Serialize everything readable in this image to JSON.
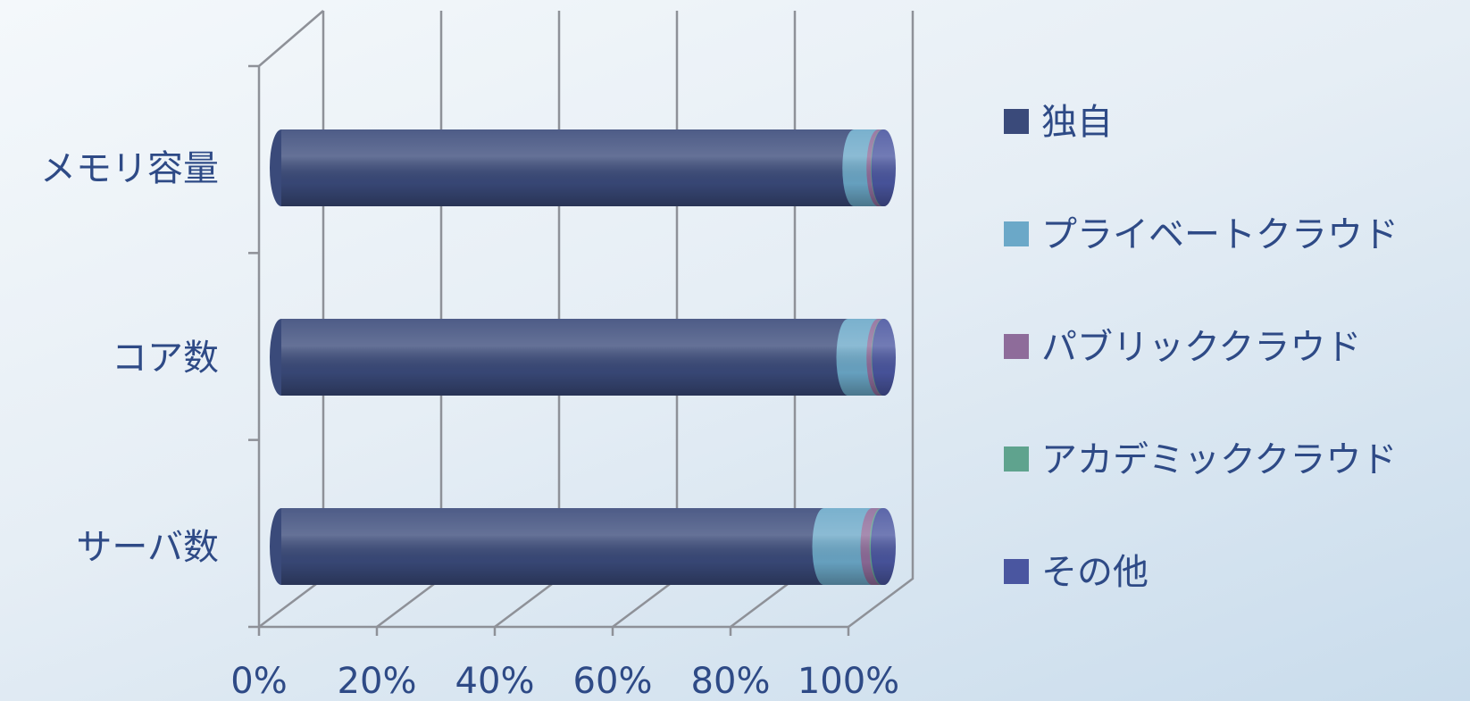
{
  "chart_data": {
    "type": "bar",
    "orientation": "horizontal",
    "stacked": "percent",
    "style": "3d-cylinder",
    "categories": [
      "サーバ数",
      "コア数",
      "メモリ容量"
    ],
    "series": [
      {
        "name": "独自",
        "color": "#3a4a7a",
        "values": [
          90,
          94,
          95
        ]
      },
      {
        "name": "プライベートクラウド",
        "color": "#6ba8c8",
        "values": [
          8,
          5,
          4
        ]
      },
      {
        "name": "パブリッククラウド",
        "color": "#8e6c9a",
        "values": [
          1.5,
          0.8,
          0.7
        ]
      },
      {
        "name": "アカデミッククラウド",
        "color": "#5fa38e",
        "values": [
          0.2,
          0.1,
          0.1
        ]
      },
      {
        "name": "その他",
        "color": "#4a56a0",
        "values": [
          0.3,
          0.1,
          0.2
        ]
      }
    ],
    "xlim": [
      0,
      100
    ],
    "x_ticks": [
      "0%",
      "20%",
      "40%",
      "60%",
      "80%",
      "100%"
    ],
    "grid": true,
    "legend": "right"
  }
}
